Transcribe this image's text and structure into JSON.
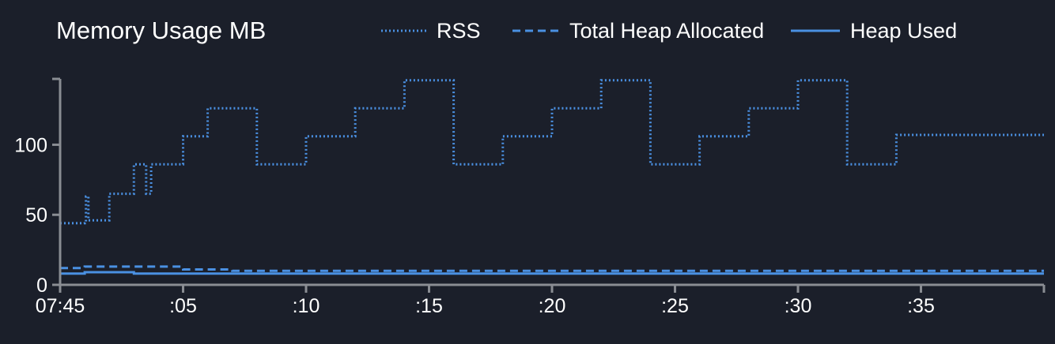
{
  "colors": {
    "background": "#1b1f2a",
    "series": "#4a90e2",
    "axis": "#8a8d93",
    "text": "#ffffff"
  },
  "chart_data": {
    "type": "line",
    "title": "Memory Usage MB",
    "xlabel": "",
    "ylabel": "",
    "xlim": [
      0,
      40
    ],
    "ylim": [
      0,
      147
    ],
    "grid": false,
    "legend_position": "top",
    "x_tick_values": [
      0,
      5,
      10,
      15,
      20,
      25,
      30,
      35
    ],
    "x_tick_labels": [
      "07:45",
      ":05",
      ":10",
      ":15",
      ":20",
      ":25",
      ":30",
      ":35"
    ],
    "y_tick_values": [
      0,
      50,
      100
    ],
    "y_tick_labels": [
      "0",
      "50",
      "100"
    ],
    "series": [
      {
        "name": "RSS",
        "style": "dotted",
        "x": [
          0,
          1,
          1.05,
          1.15,
          2,
          3,
          3.5,
          3.7,
          4,
          5,
          6,
          7,
          8,
          9,
          10,
          11,
          12,
          13,
          14,
          15,
          16,
          17,
          18,
          19,
          20,
          21,
          22,
          23,
          24,
          25,
          26,
          27,
          28,
          29,
          30,
          31,
          32,
          33,
          34,
          35,
          36,
          37,
          38,
          39,
          40
        ],
        "y": [
          44,
          45,
          63,
          46,
          65,
          86,
          65,
          86,
          86,
          106,
          126,
          126,
          86,
          86,
          106,
          106,
          126,
          126,
          146,
          146,
          86,
          86,
          106,
          106,
          126,
          126,
          146,
          146,
          86,
          86,
          106,
          106,
          126,
          126,
          146,
          146,
          86,
          86,
          107,
          107,
          107,
          107,
          107,
          107,
          107
        ]
      },
      {
        "name": "Total Heap Allocated",
        "style": "dashed",
        "x": [
          0,
          1,
          2,
          3,
          4,
          5,
          6,
          7,
          8,
          9,
          10,
          11,
          12,
          13,
          14,
          15,
          16,
          17,
          18,
          19,
          20,
          21,
          22,
          23,
          24,
          25,
          26,
          27,
          28,
          29,
          30,
          31,
          32,
          33,
          34,
          35,
          36,
          37,
          38,
          39,
          40
        ],
        "y": [
          12,
          13,
          13,
          13,
          13,
          11,
          11,
          10,
          10,
          10,
          10,
          10,
          10,
          10,
          10,
          10,
          10,
          10,
          10,
          10,
          10,
          10,
          10,
          10,
          10,
          10,
          10,
          10,
          10,
          10,
          10,
          10,
          10,
          10,
          10,
          10,
          10,
          10,
          10,
          10,
          10
        ]
      },
      {
        "name": "Heap Used",
        "style": "solid",
        "x": [
          0,
          1,
          2,
          3,
          4,
          5,
          6,
          7,
          8,
          9,
          10,
          11,
          12,
          13,
          14,
          15,
          16,
          17,
          18,
          19,
          20,
          21,
          22,
          23,
          24,
          25,
          26,
          27,
          28,
          29,
          30,
          31,
          32,
          33,
          34,
          35,
          36,
          37,
          38,
          39,
          40
        ],
        "y": [
          8,
          9,
          9,
          8,
          8,
          8,
          8,
          8,
          8,
          8,
          8,
          8,
          8,
          8,
          8,
          8,
          8,
          8,
          8,
          8,
          8,
          8,
          8,
          8,
          8,
          8,
          8,
          8,
          8,
          8,
          8,
          8,
          8,
          8,
          8,
          8,
          8,
          8,
          8,
          8,
          8
        ]
      }
    ]
  }
}
